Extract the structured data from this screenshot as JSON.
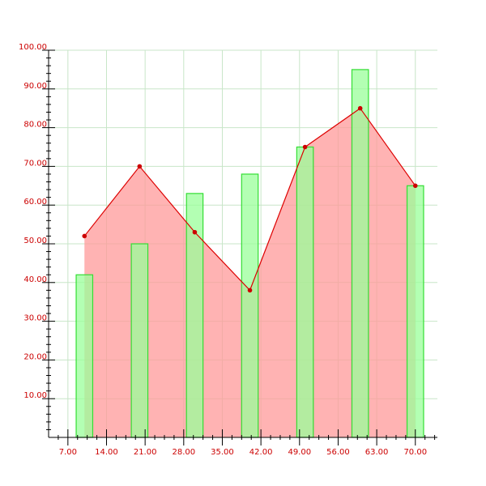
{
  "chart_data": {
    "type": "bar",
    "title": "",
    "xlabel": "",
    "ylabel": "",
    "xlim": [
      3.5,
      74
    ],
    "ylim": [
      0,
      100
    ],
    "grid": true,
    "x_ticks": [
      "7.00",
      "14.00",
      "21.00",
      "28.00",
      "35.00",
      "42.00",
      "49.00",
      "56.00",
      "63.00",
      "70.00"
    ],
    "y_ticks": [
      "10.00",
      "20.00",
      "30.00",
      "40.00",
      "50.00",
      "60.00",
      "70.00",
      "80.00",
      "90.00",
      "100.00"
    ],
    "series": [
      {
        "type": "bar",
        "x": [
          10,
          20,
          30,
          40,
          50,
          60,
          70
        ],
        "values": [
          42,
          50,
          63,
          68,
          75,
          95,
          65
        ],
        "bar_width": 3
      },
      {
        "type": "area",
        "x": [
          10,
          20,
          30,
          40,
          50,
          60,
          70
        ],
        "values": [
          52,
          70,
          53,
          38,
          75,
          85,
          65
        ]
      }
    ],
    "colors": {
      "axis": "#000000",
      "grid": "#c8e6c8",
      "tick_label": "#cc0000",
      "bar_fill": "#99ff99",
      "bar_stroke": "#33dd33",
      "area_fill": "#ff9999",
      "line": "#dd0000",
      "marker": "#cc0000"
    }
  }
}
